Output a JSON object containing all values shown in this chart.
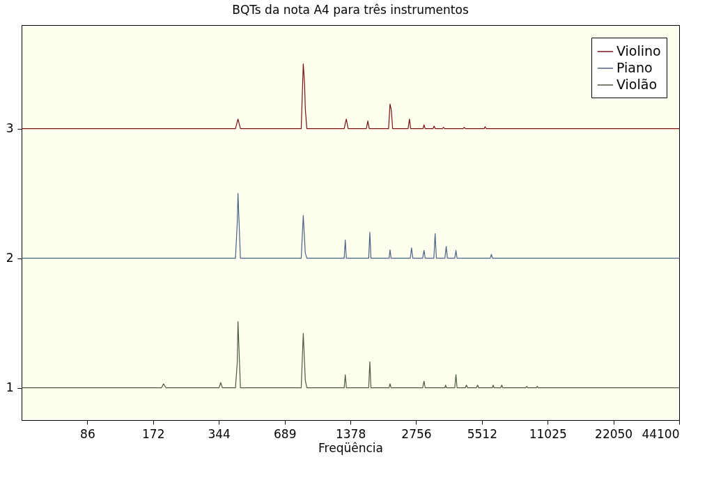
{
  "chart_data": {
    "type": "line",
    "title": "BQTs da nota A4 para três instrumentos",
    "xlabel": "Freqüência",
    "log": "x",
    "xlim": [
      43,
      44100
    ],
    "xticks": [
      86,
      172,
      344,
      689,
      1378,
      2756,
      5512,
      11025,
      22050,
      44100
    ],
    "ylim": [
      0.75,
      3.8
    ],
    "yticks": [
      1,
      2,
      3
    ],
    "grid": false,
    "legend": "top right",
    "series": [
      {
        "name": "Violino",
        "color": "#7a1010",
        "x": [
          43,
          410,
          421,
          432,
          820,
          838,
          850,
          856,
          870,
          1290,
          1319,
          1345,
          1630,
          1655,
          1680,
          2060,
          2092,
          2122,
          2150,
          2530,
          2567,
          2600,
          2960,
          2993,
          3030,
          3290,
          3330,
          3370,
          3630,
          3675,
          3720,
          4520,
          4575,
          4630,
          5640,
          5702,
          5770,
          44100
        ],
        "values": [
          3,
          3,
          3.075,
          3,
          3,
          3.5,
          3.34,
          3.155,
          3,
          3,
          3.075,
          3,
          3,
          3.06,
          3,
          3,
          3.19,
          3.14,
          3,
          3,
          3.075,
          3,
          3,
          3.03,
          3,
          3,
          3.02,
          3,
          3,
          3.01,
          3,
          3,
          3.01,
          3,
          3,
          3.015,
          3,
          3
        ]
      },
      {
        "name": "Piano",
        "color": "#4a6282",
        "x": [
          43,
          410,
          418,
          421,
          432,
          820,
          838,
          856,
          870,
          1290,
          1305,
          1320,
          1670,
          1691,
          1710,
          2070,
          2092,
          2115,
          2590,
          2624,
          2660,
          2950,
          2993,
          3030,
          3320,
          3365,
          3410,
          3730,
          3783,
          3830,
          4140,
          4192,
          4240,
          6020,
          6090,
          6160,
          44100
        ],
        "values": [
          2,
          2,
          2.28,
          2.5,
          2,
          2,
          2.33,
          2.04,
          2,
          2,
          2.14,
          2,
          2,
          2.2,
          2,
          2,
          2.065,
          2,
          2,
          2.08,
          2,
          2,
          2.06,
          2,
          2,
          2.19,
          2,
          2,
          2.09,
          2,
          2,
          2.06,
          2,
          2,
          2.03,
          2,
          2
        ]
      },
      {
        "name": "Violão",
        "color": "#4a5a3a",
        "x": [
          43,
          188,
          192,
          197,
          345,
          351,
          357,
          410,
          418,
          421,
          432,
          820,
          838,
          856,
          870,
          1290,
          1305,
          1320,
          1670,
          1691,
          1710,
          2070,
          2092,
          2115,
          2950,
          2993,
          3030,
          3730,
          3757,
          3790,
          4140,
          4192,
          4240,
          4630,
          4680,
          4730,
          5200,
          5263,
          5320,
          6150,
          6200,
          6260,
          6720,
          6795,
          6870,
          8750,
          8843,
          8940,
          9770,
          9873,
          9980,
          44100
        ],
        "values": [
          1,
          1,
          1.03,
          1,
          1,
          1.04,
          1,
          1,
          1.2,
          1.51,
          1,
          1,
          1.42,
          1.06,
          1,
          1,
          1.1,
          1,
          1,
          1.2,
          1,
          1,
          1.03,
          1,
          1,
          1.05,
          1,
          1,
          1.02,
          1,
          1,
          1.1,
          1,
          1,
          1.02,
          1,
          1,
          1.02,
          1,
          1,
          1.02,
          1,
          1,
          1.02,
          1,
          1,
          1.01,
          1,
          1,
          1.01,
          1,
          1
        ]
      }
    ]
  }
}
